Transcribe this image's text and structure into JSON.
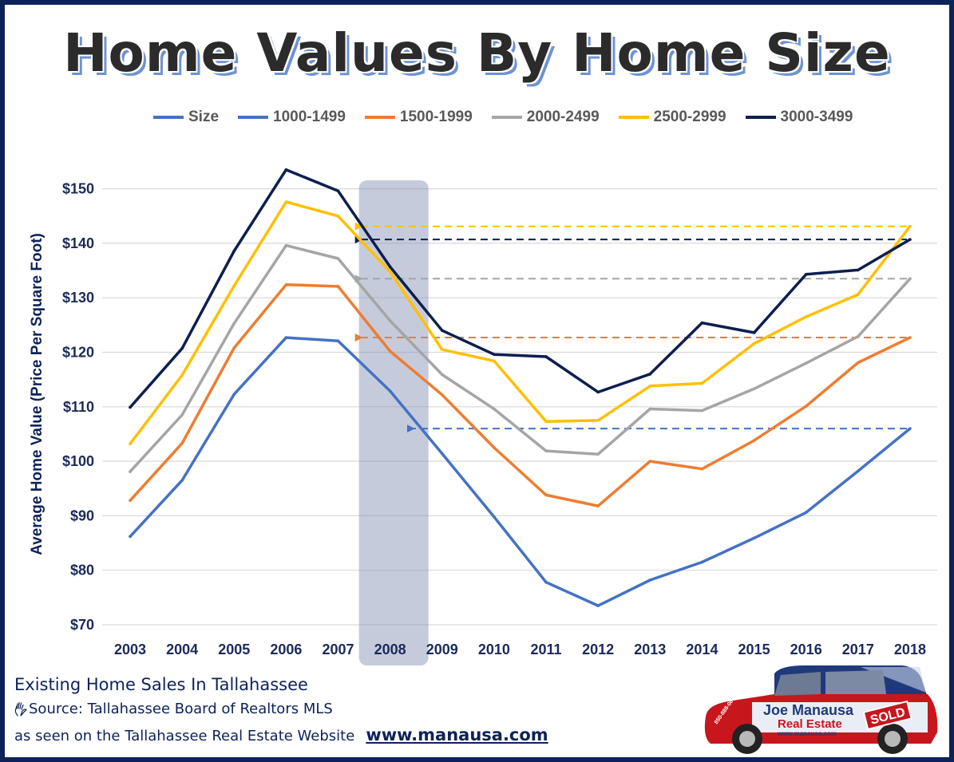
{
  "title": "Home Values By Home Size",
  "footer": {
    "line1": "Existing Home Sales In Tallahassee",
    "source": "Source: Tallahassee Board of Realtors MLS",
    "seen_on": "as seen on the Tallahassee Real Estate Website",
    "website": "www.manausa.com"
  },
  "logo": {
    "brand_top": "Joe Manausa",
    "brand_bottom": "Real Estate",
    "url": "www.manausa.com",
    "sold": "SOLD",
    "phone": "850-888-0888"
  },
  "colors": {
    "frame": "#0d2259",
    "highlight_band": "#8893b5"
  },
  "chart_data": {
    "type": "line",
    "title": "Home Values By Home Size",
    "xlabel": "",
    "ylabel": "Average Home Value (Price Per Square Foot)",
    "ylim": [
      70,
      150
    ],
    "y_ticks": [
      "$70",
      "$80",
      "$90",
      "$100",
      "$110",
      "$120",
      "$130",
      "$140",
      "$150"
    ],
    "y_tick_values": [
      70,
      80,
      90,
      100,
      110,
      120,
      130,
      140,
      150
    ],
    "x": [
      "2003",
      "2004",
      "2005",
      "2006",
      "2007",
      "2008",
      "2009",
      "2010",
      "2011",
      "2012",
      "2013",
      "2014",
      "2015",
      "2016",
      "2017",
      "2018"
    ],
    "grid": true,
    "legend_position": "top",
    "legend_entries": [
      {
        "name": "Size",
        "color": "#4472c4"
      },
      {
        "name": "1000-1499",
        "color": "#4472c4"
      },
      {
        "name": "1500-1999",
        "color": "#ed7d31"
      },
      {
        "name": "2000-2499",
        "color": "#a5a5a5"
      },
      {
        "name": "2500-2999",
        "color": "#ffc000"
      },
      {
        "name": "3000-3499",
        "color": "#0d1f4f"
      }
    ],
    "highlight_year": "2008",
    "series": [
      {
        "name": "1000-1499",
        "color": "#4472c4",
        "values": [
          86.2,
          96.5,
          112.3,
          122.7,
          122.1,
          112.9,
          101.4,
          89.8,
          77.8,
          73.5,
          78.2,
          81.5,
          85.9,
          90.6,
          98.2,
          106.0
        ]
      },
      {
        "name": "1500-1999",
        "color": "#ed7d31",
        "values": [
          92.8,
          103.3,
          120.8,
          132.4,
          132.1,
          120.2,
          112.2,
          102.5,
          93.8,
          91.8,
          100.0,
          98.6,
          103.8,
          110.1,
          118.1,
          122.7
        ]
      },
      {
        "name": "2000-2499",
        "color": "#a5a5a5",
        "values": [
          98.1,
          108.5,
          125.3,
          139.6,
          137.2,
          125.8,
          115.9,
          109.6,
          101.9,
          101.3,
          109.6,
          109.3,
          113.3,
          118.0,
          122.9,
          133.5
        ]
      },
      {
        "name": "2500-2999",
        "color": "#ffc000",
        "values": [
          103.2,
          115.8,
          132.2,
          147.6,
          145.0,
          134.8,
          120.5,
          118.4,
          107.3,
          107.5,
          113.8,
          114.3,
          121.6,
          126.5,
          130.6,
          143.1
        ]
      },
      {
        "name": "3000-3499",
        "color": "#0d1f4f",
        "values": [
          109.9,
          120.7,
          138.6,
          153.5,
          149.6,
          135.7,
          124.0,
          119.6,
          119.2,
          112.7,
          116.0,
          125.4,
          123.6,
          134.3,
          135.1,
          140.7
        ]
      }
    ],
    "reference_lines": [
      {
        "series": "2500-2999",
        "value": 143.1,
        "from": "2018",
        "to": "2008",
        "style": "dashed-arrow"
      },
      {
        "series": "3000-3499",
        "value": 140.7,
        "from": "2018",
        "to": "2008",
        "style": "dashed-arrow"
      },
      {
        "series": "2000-2499",
        "value": 133.5,
        "from": "2018",
        "to": "2008",
        "style": "dashed-arrow"
      },
      {
        "series": "1500-1999",
        "value": 122.7,
        "from": "2018",
        "to": "2008",
        "style": "dashed-arrow"
      },
      {
        "series": "1000-1499",
        "value": 106.0,
        "from": "2018",
        "to": "2009",
        "style": "dashed-arrow"
      }
    ]
  }
}
